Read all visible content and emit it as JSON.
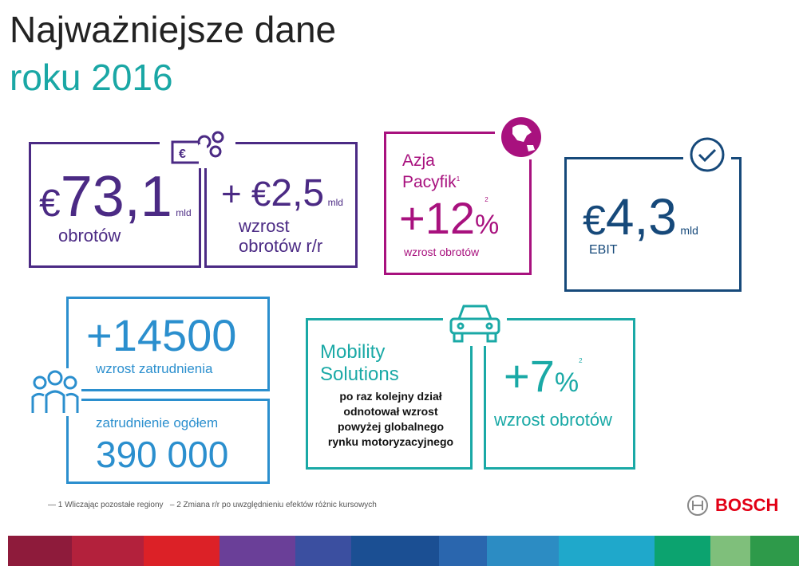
{
  "title": {
    "line1": "Najważniejsze dane",
    "line2": "roku 2016"
  },
  "sales": {
    "currency": "€",
    "value": "73,1",
    "unit": "mld",
    "label": "obrotów"
  },
  "growth": {
    "prefix": "+ €",
    "value": "2,5",
    "unit": "mld",
    "label1": "wzrost",
    "label2": "obrotów r/r"
  },
  "asia": {
    "name1": "Azja",
    "name2": "Pacyfik",
    "sup": "1",
    "value": "+12",
    "pct": "%",
    "sup2": "2",
    "label": "wzrost obrotów"
  },
  "ebit": {
    "currency": "€",
    "value": "4,3",
    "unit": "mld",
    "label": "EBIT"
  },
  "employees": {
    "increase": "+14500",
    "increase_label": "wzrost zatrudnienia",
    "total_label": "zatrudnienie ogółem",
    "total": "390 000"
  },
  "mobility": {
    "name1": "Mobility",
    "name2": "Solutions",
    "desc": [
      "po raz kolejny dział",
      "odnotował wzrost",
      "powyżej globalnego",
      "rynku motoryzacyjnego"
    ],
    "value": "+7",
    "pct": "%",
    "sup": "2",
    "label": "wzrost obrotów"
  },
  "footnotes": [
    "1 Wliczając pozostałe regiony",
    "2 Zmiana r/r po uwzględnieniu efektów różnic kursowych"
  ],
  "brand": "BOSCH",
  "colors": {
    "purple": "#4b2a84",
    "magenta": "#a8117e",
    "dark_blue": "#16497a",
    "light_blue": "#2b8fce",
    "teal": "#1aa9a6",
    "brand_red": "#e20015"
  }
}
